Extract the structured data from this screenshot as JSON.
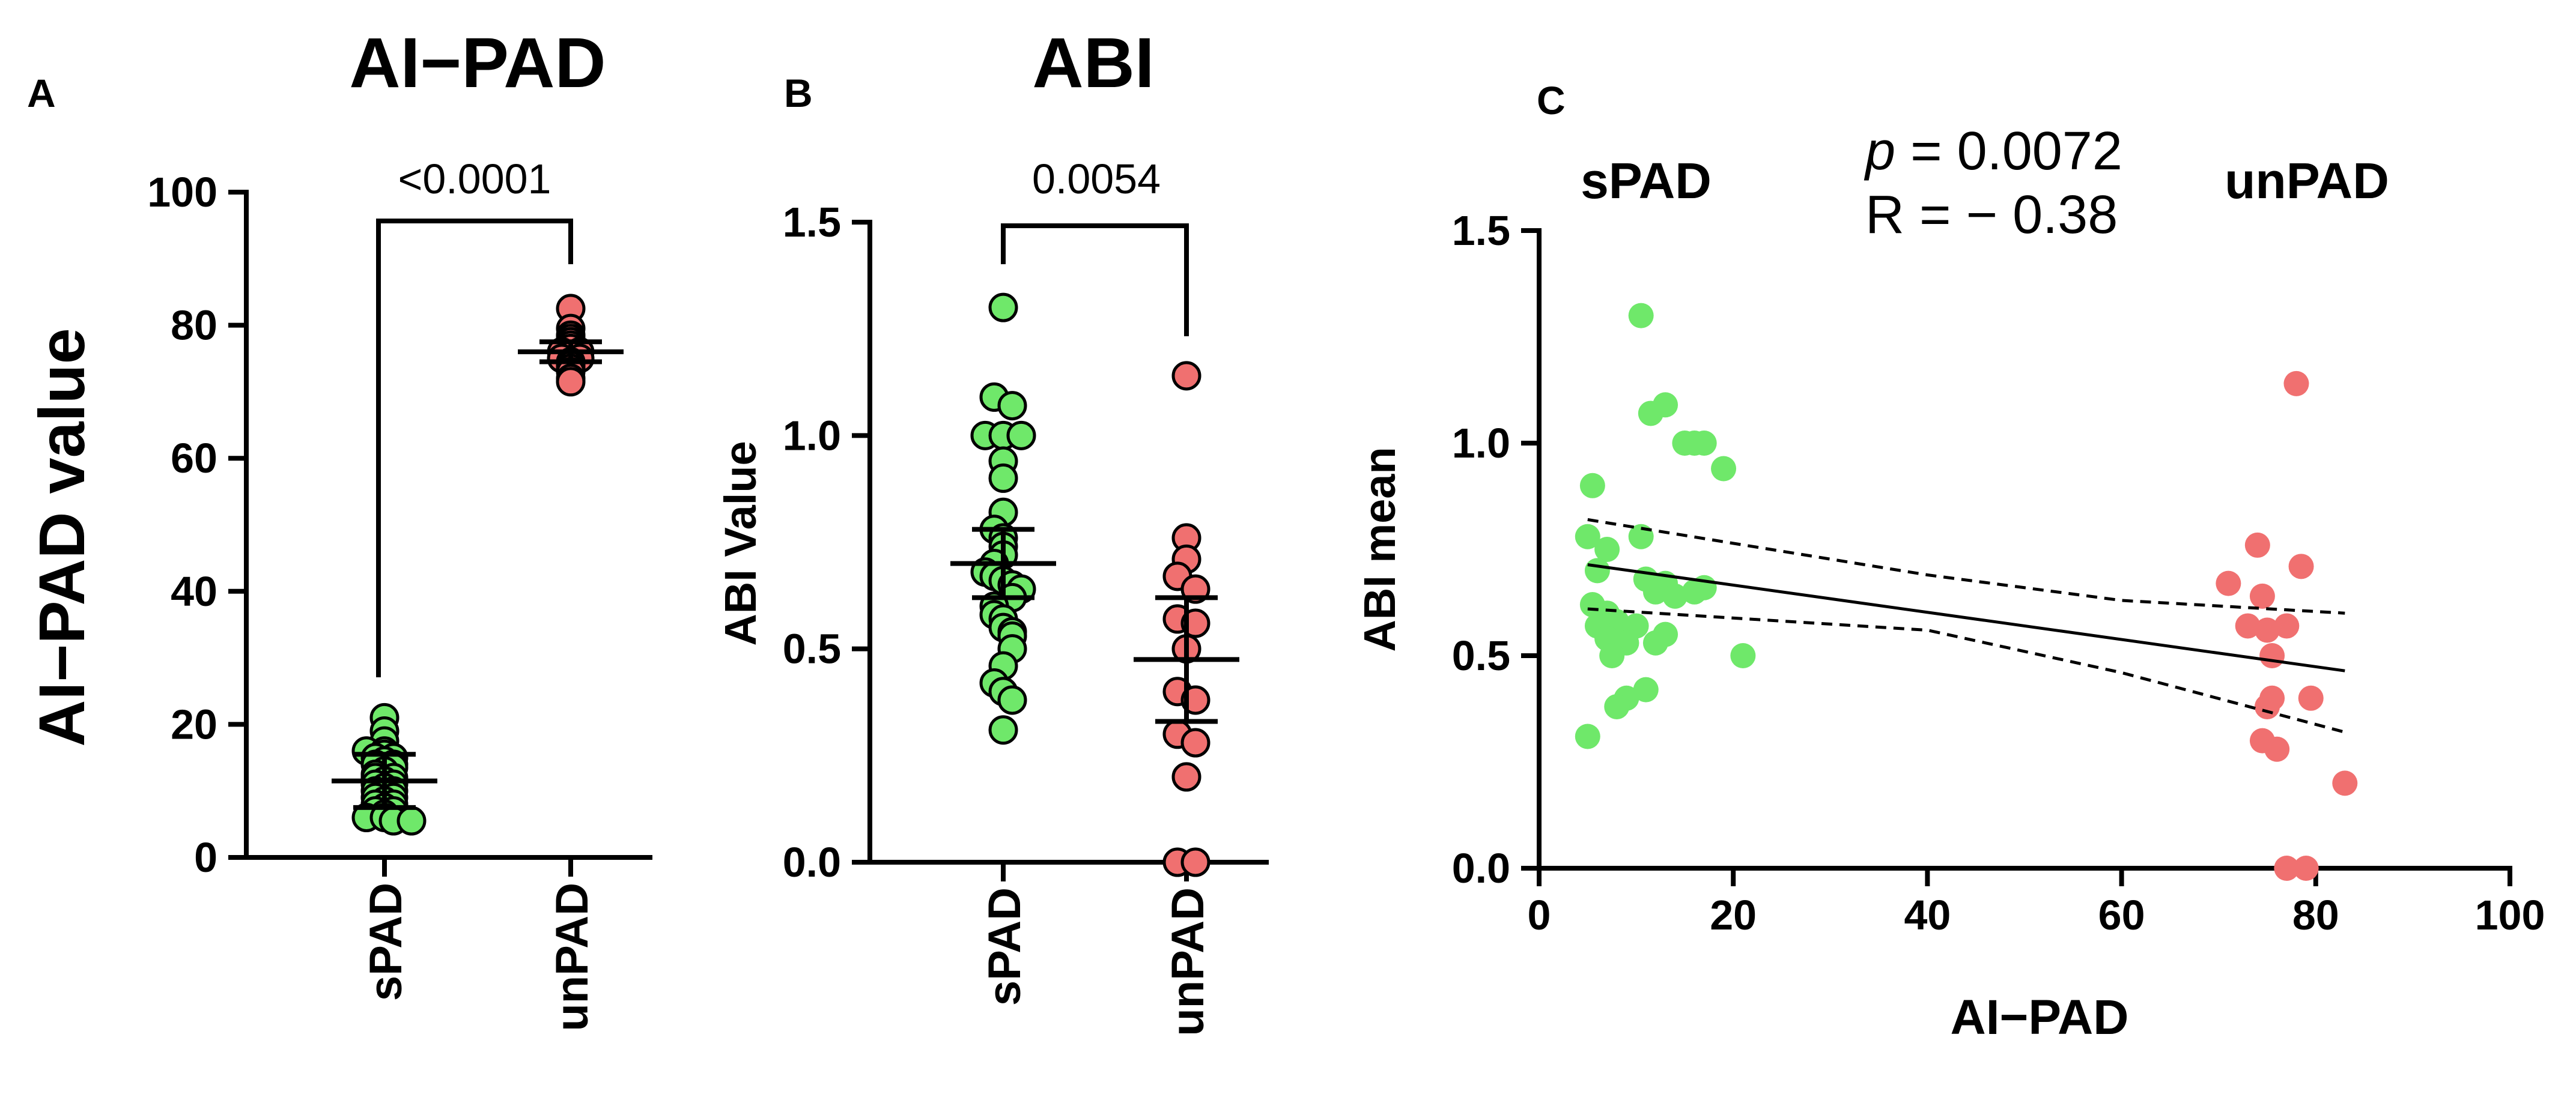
{
  "colors": {
    "spad": "#6FE86A",
    "unpad": "#F07070",
    "spad_label": "#5EE85E",
    "unpad_label": "#F27272"
  },
  "chart_data": [
    {
      "panel": "A",
      "type": "scatter",
      "title": "AI−PAD",
      "ylabel": "AI−PAD value",
      "ylim": [
        0,
        100
      ],
      "yticks": [
        "0",
        "20",
        "40",
        "60",
        "80",
        "100"
      ],
      "categories": [
        "sPAD",
        "unPAD"
      ],
      "significance": "<0.0001",
      "series": [
        {
          "name": "sPAD",
          "mean": 11.5,
          "ci": [
            7.5,
            15.5
          ],
          "values": [
            21,
            19,
            17.5,
            16,
            16,
            15.5,
            15,
            15,
            14.5,
            14,
            14,
            13.5,
            13,
            12.5,
            12,
            12,
            11.5,
            11,
            11,
            10.5,
            10,
            10,
            9.5,
            9,
            9,
            8.5,
            8,
            8,
            7.5,
            7,
            7,
            6.5,
            6,
            6,
            5.5,
            5.5
          ]
        },
        {
          "name": "unPAD",
          "mean": 76,
          "ci": [
            74.5,
            77.5
          ],
          "values": [
            82.5,
            79.5,
            78.5,
            78,
            77.5,
            77,
            76.5,
            76,
            76,
            75.5,
            75,
            75,
            74.5,
            74,
            73.5,
            73,
            72,
            71.5
          ]
        }
      ]
    },
    {
      "panel": "B",
      "type": "scatter",
      "title": "ABI",
      "ylabel": "ABI Value",
      "ylim": [
        0,
        1.5
      ],
      "yticks": [
        "0.0",
        "0.5",
        "1.0",
        "1.5"
      ],
      "categories": [
        "sPAD",
        "unPAD"
      ],
      "significance": "0.0054",
      "series": [
        {
          "name": "sPAD",
          "mean": 0.7,
          "ci": [
            0.62,
            0.78
          ],
          "values": [
            1.3,
            1.09,
            1.07,
            1.0,
            1.0,
            1.0,
            0.94,
            0.9,
            0.82,
            0.78,
            0.76,
            0.74,
            0.72,
            0.7,
            0.68,
            0.67,
            0.66,
            0.65,
            0.64,
            0.62,
            0.6,
            0.58,
            0.57,
            0.55,
            0.54,
            0.53,
            0.5,
            0.46,
            0.42,
            0.4,
            0.38,
            0.31
          ]
        },
        {
          "name": "unPAD",
          "mean": 0.475,
          "ci": [
            0.33,
            0.62
          ],
          "values": [
            1.14,
            0.76,
            0.71,
            0.67,
            0.64,
            0.57,
            0.56,
            0.5,
            0.4,
            0.38,
            0.3,
            0.28,
            0.2,
            0.0,
            0.0
          ]
        }
      ]
    },
    {
      "panel": "C",
      "type": "scatter",
      "xlabel": "AI−PAD",
      "ylabel": "ABI mean",
      "xlim": [
        0,
        100
      ],
      "ylim": [
        0,
        1.5
      ],
      "xticks": [
        "0",
        "20",
        "40",
        "60",
        "80",
        "100"
      ],
      "yticks": [
        "0.0",
        "0.5",
        "1.0",
        "1.5"
      ],
      "annotation": {
        "p_symbol": "p",
        "p_text": " = 0.0072",
        "r_text": "R = − 0.38"
      },
      "group_labels": {
        "spad": "sPAD",
        "unpad": "unPAD"
      },
      "regression": {
        "slope": -0.0032,
        "intercept": 0.73,
        "x_range": [
          5,
          83
        ]
      },
      "confidence_band": {
        "upper": [
          [
            5,
            0.82
          ],
          [
            40,
            0.69
          ],
          [
            60,
            0.63
          ],
          [
            83,
            0.6
          ]
        ],
        "lower": [
          [
            5,
            0.61
          ],
          [
            40,
            0.56
          ],
          [
            60,
            0.46
          ],
          [
            83,
            0.32
          ]
        ]
      },
      "series": [
        {
          "name": "sPAD",
          "points": [
            [
              10.5,
              1.3
            ],
            [
              13,
              1.09
            ],
            [
              11.5,
              1.07
            ],
            [
              15,
              1.0
            ],
            [
              17,
              1.0
            ],
            [
              16,
              1.0
            ],
            [
              19,
              0.94
            ],
            [
              5.5,
              0.9
            ],
            [
              10.5,
              0.78
            ],
            [
              5,
              0.78
            ],
            [
              7,
              0.75
            ],
            [
              11,
              0.68
            ],
            [
              6,
              0.7
            ],
            [
              13,
              0.67
            ],
            [
              17,
              0.66
            ],
            [
              12,
              0.65
            ],
            [
              16,
              0.65
            ],
            [
              14,
              0.64
            ],
            [
              5.5,
              0.62
            ],
            [
              7,
              0.6
            ],
            [
              8,
              0.58
            ],
            [
              10,
              0.57
            ],
            [
              6,
              0.57
            ],
            [
              9,
              0.55
            ],
            [
              13,
              0.55
            ],
            [
              7,
              0.54
            ],
            [
              12,
              0.53
            ],
            [
              9,
              0.53
            ],
            [
              21,
              0.5
            ],
            [
              7.5,
              0.5
            ],
            [
              11,
              0.42
            ],
            [
              9,
              0.4
            ],
            [
              8,
              0.38
            ],
            [
              5,
              0.31
            ]
          ]
        },
        {
          "name": "unPAD",
          "points": [
            [
              78,
              1.14
            ],
            [
              74,
              0.76
            ],
            [
              78.5,
              0.71
            ],
            [
              71,
              0.67
            ],
            [
              74.5,
              0.64
            ],
            [
              73,
              0.57
            ],
            [
              77,
              0.57
            ],
            [
              75,
              0.56
            ],
            [
              75.5,
              0.5
            ],
            [
              75.5,
              0.4
            ],
            [
              79.5,
              0.4
            ],
            [
              75,
              0.38
            ],
            [
              74.5,
              0.3
            ],
            [
              76,
              0.28
            ],
            [
              83,
              0.2
            ],
            [
              77,
              0.0
            ],
            [
              79,
              0.0
            ]
          ]
        }
      ]
    }
  ]
}
